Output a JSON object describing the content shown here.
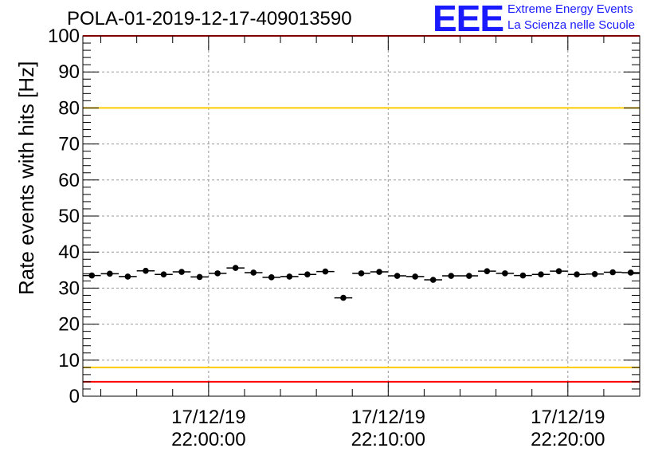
{
  "title": "POLA-01-2019-12-17-409013590",
  "logo": {
    "mark": "EEE",
    "line1": "Extreme Energy Events",
    "line2": "La Scienza nelle Scuole",
    "color": "#1a1aff"
  },
  "chart_data": {
    "type": "scatter",
    "title": "POLA-01-2019-12-17-409013590",
    "xlabel": "",
    "ylabel": "Rate events with hits [Hz]",
    "ylim": [
      0,
      100
    ],
    "yticks": [
      0,
      10,
      20,
      30,
      40,
      50,
      60,
      70,
      80,
      90,
      100
    ],
    "x_unit": "minutes after 17/12/19 21:53:00",
    "xlim": [
      0,
      31
    ],
    "xticks": [
      {
        "x": 7,
        "label_date": "17/12/19",
        "label_time": "22:00:00"
      },
      {
        "x": 17,
        "label_date": "17/12/19",
        "label_time": "22:10:00"
      },
      {
        "x": 27,
        "label_date": "17/12/19",
        "label_time": "22:20:00"
      }
    ],
    "grid": true,
    "reference_lines": [
      {
        "y": 100,
        "color": "#ff0000"
      },
      {
        "y": 80,
        "color": "#ffcc00"
      },
      {
        "y": 8,
        "color": "#ffcc00"
      },
      {
        "y": 4,
        "color": "#ff0000"
      }
    ],
    "series": [
      {
        "marker_color": "#000000",
        "x": [
          0.5,
          1.5,
          2.5,
          3.5,
          4.5,
          5.5,
          6.5,
          7.5,
          8.5,
          9.5,
          10.5,
          11.5,
          12.5,
          13.5,
          14.5,
          15.5,
          16.5,
          17.5,
          18.5,
          19.5,
          20.5,
          21.5,
          22.5,
          23.5,
          24.5,
          25.5,
          26.5,
          27.5,
          28.5,
          29.5,
          30.5
        ],
        "y": [
          33.5,
          34.0,
          33.2,
          34.8,
          33.8,
          34.5,
          33.1,
          34.1,
          35.6,
          34.3,
          33.0,
          33.2,
          33.8,
          34.6,
          27.3,
          34.1,
          34.5,
          33.4,
          33.2,
          32.3,
          33.4,
          33.4,
          34.7,
          34.1,
          33.5,
          33.8,
          34.7,
          33.8,
          33.9,
          34.4,
          34.3
        ]
      }
    ]
  }
}
